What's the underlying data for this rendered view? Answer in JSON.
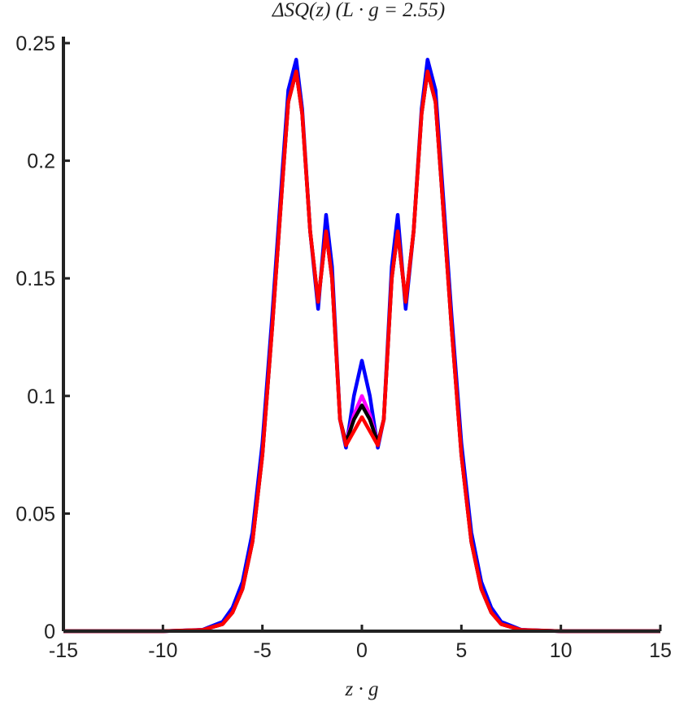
{
  "chart_data": {
    "type": "line",
    "title": "ΔSQ(z) (L · g = 2.55)",
    "x_label": "z · g",
    "x": [
      -15,
      -10,
      -8,
      -7,
      -6.5,
      -6,
      -5.5,
      -5,
      -4.5,
      -4,
      -3.7,
      -3.3,
      -3,
      -2.6,
      -2.2,
      -1.8,
      -1.5,
      -1.1,
      -0.8,
      -0.4,
      0,
      0.4,
      0.8,
      1.1,
      1.5,
      1.8,
      2.2,
      2.6,
      3,
      3.3,
      3.7,
      4,
      4.5,
      5,
      5.5,
      6,
      6.5,
      7,
      8,
      10,
      15
    ],
    "series": [
      {
        "color": "#0000ff",
        "values": [
          0,
          0,
          0.0006,
          0.004,
          0.01,
          0.021,
          0.042,
          0.08,
          0.135,
          0.195,
          0.23,
          0.243,
          0.222,
          0.17,
          0.137,
          0.177,
          0.155,
          0.09,
          0.078,
          0.1,
          0.115,
          0.1,
          0.078,
          0.09,
          0.155,
          0.177,
          0.137,
          0.17,
          0.222,
          0.243,
          0.23,
          0.195,
          0.135,
          0.08,
          0.042,
          0.021,
          0.01,
          0.004,
          0.0006,
          0,
          0
        ]
      },
      {
        "color": "#ff00ff",
        "values": [
          0,
          0,
          0.0005,
          0.003,
          0.008,
          0.018,
          0.038,
          0.075,
          0.13,
          0.19,
          0.225,
          0.238,
          0.22,
          0.17,
          0.14,
          0.17,
          0.15,
          0.09,
          0.08,
          0.092,
          0.1,
          0.092,
          0.08,
          0.09,
          0.15,
          0.17,
          0.14,
          0.17,
          0.22,
          0.238,
          0.225,
          0.19,
          0.13,
          0.075,
          0.038,
          0.018,
          0.008,
          0.003,
          0.0005,
          0,
          0
        ]
      },
      {
        "color": "#000000",
        "values": [
          0,
          0,
          0.0005,
          0.003,
          0.008,
          0.018,
          0.038,
          0.075,
          0.13,
          0.19,
          0.225,
          0.238,
          0.22,
          0.17,
          0.14,
          0.17,
          0.15,
          0.09,
          0.08,
          0.09,
          0.096,
          0.09,
          0.08,
          0.09,
          0.15,
          0.17,
          0.14,
          0.17,
          0.22,
          0.238,
          0.225,
          0.19,
          0.13,
          0.075,
          0.038,
          0.018,
          0.008,
          0.003,
          0.0005,
          0,
          0
        ]
      },
      {
        "color": "#ff0000",
        "values": [
          0,
          0,
          0.0005,
          0.003,
          0.008,
          0.018,
          0.038,
          0.075,
          0.13,
          0.19,
          0.225,
          0.238,
          0.22,
          0.17,
          0.14,
          0.17,
          0.15,
          0.09,
          0.079,
          0.085,
          0.091,
          0.085,
          0.079,
          0.09,
          0.15,
          0.17,
          0.14,
          0.17,
          0.22,
          0.238,
          0.225,
          0.19,
          0.13,
          0.075,
          0.038,
          0.018,
          0.008,
          0.003,
          0.0005,
          0,
          0
        ]
      }
    ],
    "xlim": [
      -15,
      15
    ],
    "xticks": [
      -15,
      -10,
      -5,
      0,
      5,
      10,
      15
    ],
    "ylim": [
      0,
      0.25
    ],
    "yticks": [
      0,
      0.05,
      0.1,
      0.15,
      0.2,
      0.25
    ],
    "grid": false
  }
}
